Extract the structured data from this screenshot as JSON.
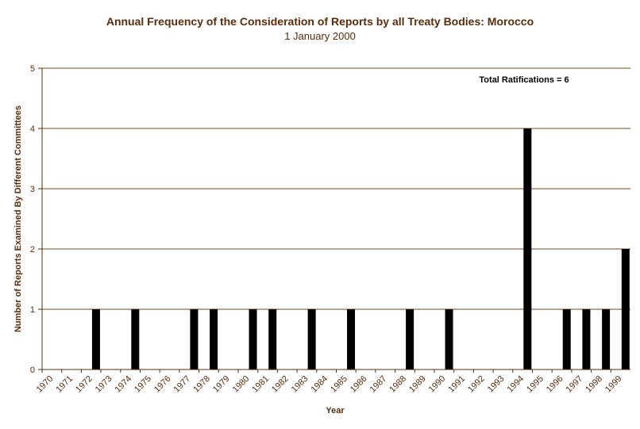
{
  "chart_data": {
    "type": "bar",
    "title": "Annual Frequency of the Consideration of Reports by all Treaty Bodies: Morocco",
    "subtitle": "1 January 2000",
    "xlabel": "Year",
    "ylabel": "Number of Reports Examined By Different Committees",
    "annotation": "Total Ratifications = 6",
    "ylim": [
      0,
      5
    ],
    "yticks": [
      "0",
      "1",
      "2",
      "3",
      "4",
      "5"
    ],
    "grid": "horizontal",
    "legend": "none",
    "categories": [
      "1970",
      "1971",
      "1972",
      "1973",
      "1974",
      "1975",
      "1976",
      "1977",
      "1978",
      "1979",
      "1980",
      "1981",
      "1982",
      "1983",
      "1984",
      "1985",
      "1986",
      "1987",
      "1988",
      "1989",
      "1990",
      "1991",
      "1992",
      "1993",
      "1994",
      "1995",
      "1996",
      "1997",
      "1998",
      "1999"
    ],
    "values": [
      0,
      0,
      1,
      0,
      1,
      0,
      0,
      1,
      1,
      0,
      1,
      1,
      0,
      1,
      0,
      1,
      0,
      0,
      1,
      0,
      1,
      0,
      0,
      0,
      4,
      0,
      1,
      1,
      1,
      2
    ],
    "colors": {
      "bar": "#000000",
      "grid": "#7a4a10",
      "axis": "#5a2d0c",
      "text": "#5a2d0c"
    }
  }
}
